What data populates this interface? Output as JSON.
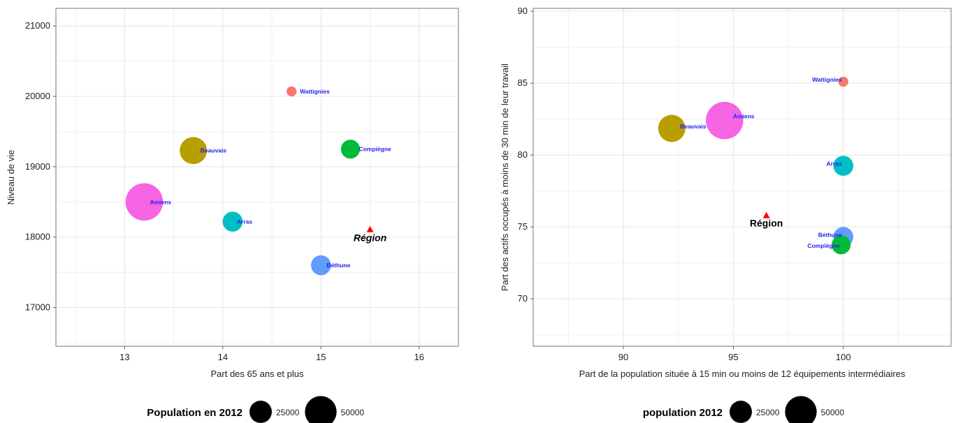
{
  "chart_data": [
    {
      "type": "scatter",
      "xlabel": "Part des 65 ans et plus",
      "ylabel": "Niveau de vie",
      "xlim": [
        12.3,
        16.4
      ],
      "ylim": [
        16450,
        21250
      ],
      "xticks": [
        13,
        14,
        15,
        16
      ],
      "yticks": [
        17000,
        18000,
        19000,
        20000,
        21000
      ],
      "grid": true,
      "legend": {
        "title": "Population en 2012",
        "sizes": [
          25000,
          50000
        ],
        "labels": [
          "25000",
          "50000"
        ],
        "position": "bottom"
      },
      "points": [
        {
          "label": "Wattignies",
          "x": 14.7,
          "y": 20070,
          "population": 5000,
          "color": "#f8766d"
        },
        {
          "label": "Beauvais",
          "x": 13.7,
          "y": 19230,
          "population": 37000,
          "color": "#b79f00"
        },
        {
          "label": "Compiègne",
          "x": 15.3,
          "y": 19250,
          "population": 18000,
          "color": "#00ba38"
        },
        {
          "label": "Amiens",
          "x": 13.2,
          "y": 18500,
          "population": 70000,
          "color": "#f564e3"
        },
        {
          "label": "Arras",
          "x": 14.1,
          "y": 18220,
          "population": 20000,
          "color": "#00bfc4"
        },
        {
          "label": "Béthune",
          "x": 15.0,
          "y": 17600,
          "population": 20000,
          "color": "#619cff"
        }
      ],
      "reference": {
        "label": "Région",
        "x": 15.5,
        "y": 18110,
        "color": "#ff0000"
      }
    },
    {
      "type": "scatter",
      "xlabel": "Part de la population située à 15 min ou moins de 12 équipements intermédiaires",
      "ylabel": "Part des actifs occupés à moins de 30 min de leur travail",
      "xlim": [
        85.9,
        104.9
      ],
      "ylim": [
        66.7,
        90.2
      ],
      "xticks": [
        90,
        95,
        100
      ],
      "yticks": [
        70,
        75,
        80,
        85,
        90
      ],
      "grid": true,
      "legend": {
        "title": "population 2012",
        "sizes": [
          25000,
          50000
        ],
        "labels": [
          "25000",
          "50000"
        ],
        "position": "bottom"
      },
      "points": [
        {
          "label": "Wattignies",
          "x": 100.0,
          "y": 85.1,
          "population": 5000,
          "color": "#f8766d"
        },
        {
          "label": "Beauvais",
          "x": 92.2,
          "y": 81.85,
          "population": 37000,
          "color": "#b79f00"
        },
        {
          "label": "Amiens",
          "x": 94.6,
          "y": 82.4,
          "population": 70000,
          "color": "#f564e3"
        },
        {
          "label": "Arras",
          "x": 100.0,
          "y": 79.25,
          "population": 20000,
          "color": "#00bfc4"
        },
        {
          "label": "Béthune",
          "x": 100.0,
          "y": 74.3,
          "population": 20000,
          "color": "#619cff"
        },
        {
          "label": "Compiègne",
          "x": 99.9,
          "y": 73.75,
          "population": 18000,
          "color": "#00ba38"
        }
      ],
      "reference": {
        "label": "Région",
        "x": 96.5,
        "y": 75.8,
        "color": "#ff0000"
      }
    }
  ]
}
